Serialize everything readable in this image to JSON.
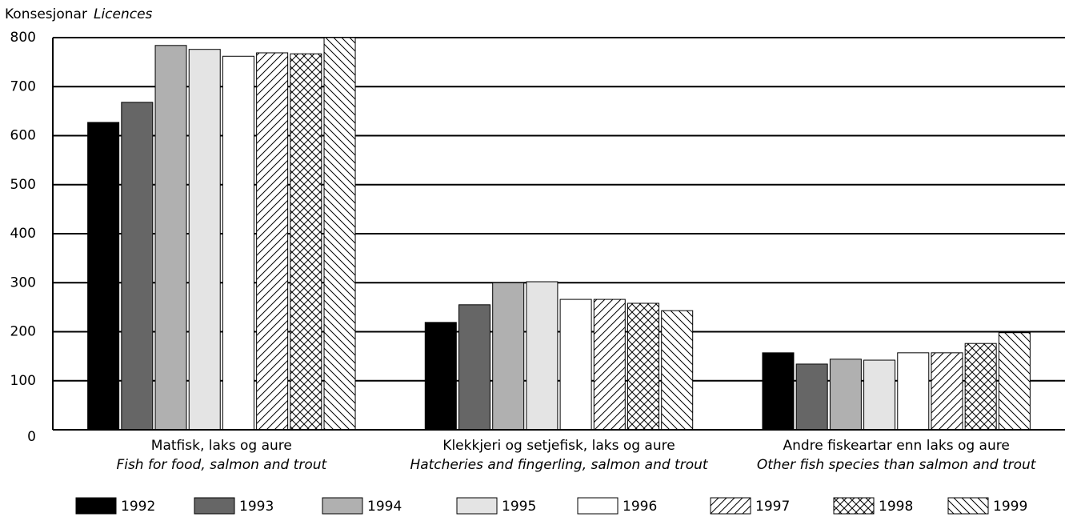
{
  "chart_data": {
    "type": "bar",
    "y_label": [
      "Konsesjonar",
      "Licences"
    ],
    "categories": [
      [
        "Matfisk, laks og aure",
        "Fish for food, salmon and trout"
      ],
      [
        "Klekkjeri og setjefisk, laks og aure",
        "Hatcheries and fingerling, salmon and trout"
      ],
      [
        "Andre fiskeartar enn laks og aure",
        "Other fish species than salmon and trout"
      ]
    ],
    "series": [
      {
        "name": "1992",
        "color": "#000000",
        "values": [
          627,
          219,
          157
        ]
      },
      {
        "name": "1993",
        "color": "#666666",
        "values": [
          668,
          255,
          134
        ]
      },
      {
        "name": "1994",
        "color": "#b0b0b0",
        "values": [
          784,
          300,
          144
        ]
      },
      {
        "name": "1995",
        "color": "#e4e4e4",
        "values": [
          776,
          302,
          142
        ]
      },
      {
        "name": "1996",
        "color": "#ffffff",
        "values": [
          762,
          266,
          157
        ]
      },
      {
        "name": "1997",
        "color": "#ffffff",
        "pattern": "diagonal",
        "values": [
          769,
          266,
          157
        ]
      },
      {
        "name": "1998",
        "color": "#ffffff",
        "pattern": "cross",
        "values": [
          767,
          258,
          176
        ]
      },
      {
        "name": "1999",
        "color": "#ffffff",
        "pattern": "back-diagonal",
        "values": [
          800,
          243,
          198
        ]
      }
    ],
    "ylim": [
      0,
      800
    ],
    "yticks": [
      0,
      100,
      200,
      300,
      400,
      500,
      600,
      700,
      800
    ],
    "grid": true,
    "legend": "bottom"
  }
}
